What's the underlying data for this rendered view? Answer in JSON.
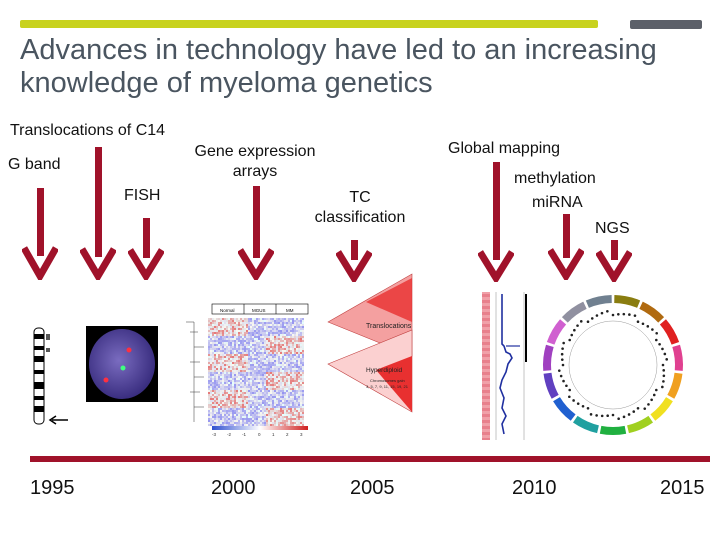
{
  "slide": {
    "title": "Advances in technology have led to an increasing knowledge of myeloma genetics",
    "colors": {
      "accent_bar": "#c8d21e",
      "corner_bar": "#5c6069",
      "arrow": "#a0122a",
      "timeline": "#a0122a",
      "title_text": "#4a5560"
    }
  },
  "labels": {
    "translocations": "Translocations of C14",
    "g_band": "G band",
    "fish": "FISH",
    "gene_expression_1": "Gene expression",
    "gene_expression_2": "arrays",
    "tc_1": "TC",
    "tc_2": "classification",
    "global_mapping": "Global mapping",
    "methylation": "methylation",
    "mirna": "miRNA",
    "ngs": "NGS"
  },
  "timeline": {
    "years": [
      "1995",
      "2000",
      "2005",
      "2010",
      "2015"
    ]
  },
  "figures": {
    "heatmap_headers": [
      "Normal",
      "MGUS",
      "MM"
    ],
    "heatmap_scale": [
      "-3",
      "-2",
      "-1",
      "0",
      "1",
      "2",
      "3"
    ],
    "tc_translocations": "Translocations",
    "tc_hyperdiploid": "Hyperdiploid",
    "tc_chromosomes_1": "Chromosomes gain",
    "tc_chromosomes_2": "3, 5, 7, 9, 11, 15, 19, 21"
  }
}
